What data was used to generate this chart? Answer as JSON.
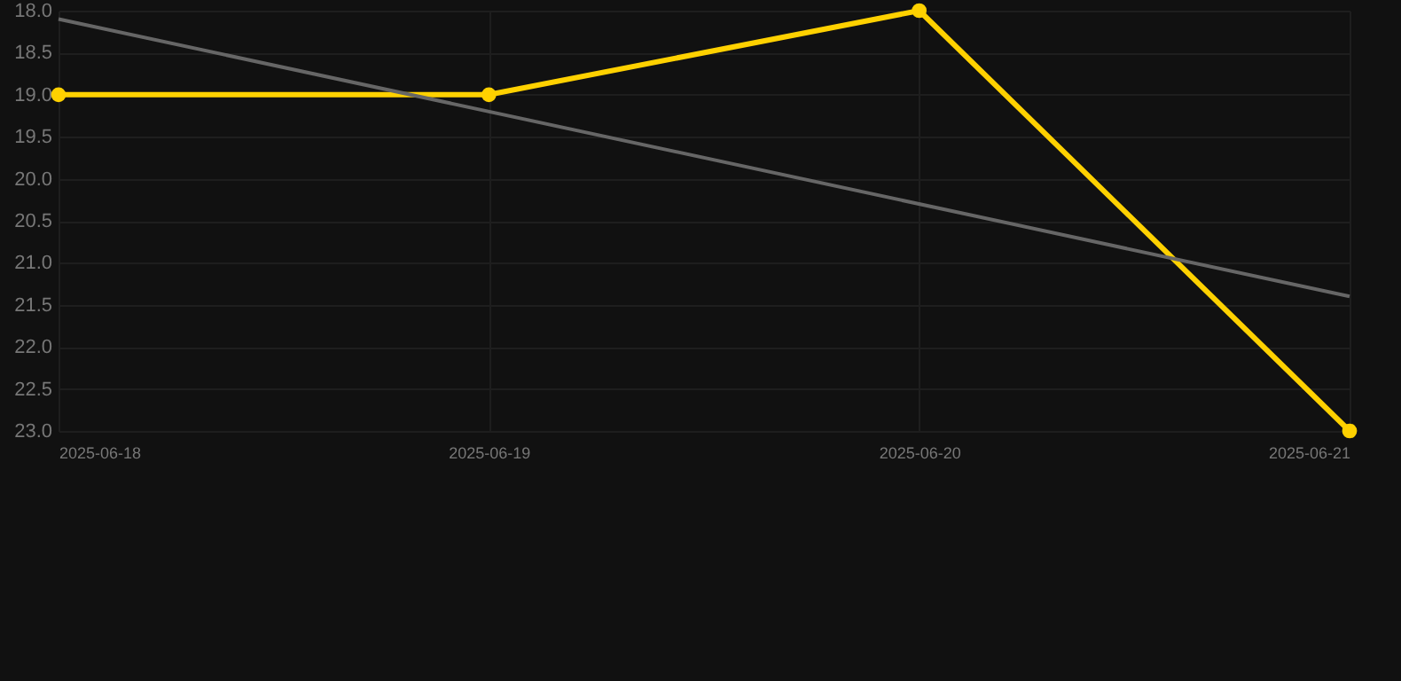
{
  "chart_data": {
    "type": "line",
    "x": [
      "2025-06-18",
      "2025-06-19",
      "2025-06-20",
      "2025-06-21"
    ],
    "series": [
      {
        "color": "#ffd100",
        "values": [
          19,
          19,
          18,
          23
        ],
        "marker": "circle"
      },
      {
        "type": "line",
        "color": "#666666",
        "x": [
          "2025-06-18",
          "2025-06-21"
        ],
        "values": [
          18.1,
          21.4
        ],
        "marker": "none"
      }
    ],
    "xlim": [
      "2025-06-18",
      "2025-06-21"
    ],
    "xticks": [
      "2025-06-18",
      "2025-06-19",
      "2025-06-20",
      "2025-06-21"
    ],
    "ylim": [
      23,
      18
    ],
    "yticks": [
      {
        "value": 18,
        "label": "18.0"
      },
      18.5,
      {
        "value": 19,
        "label": "19.0"
      },
      19.5,
      {
        "value": 20,
        "label": "20.0"
      },
      20.5,
      {
        "value": 21,
        "label": "21.0"
      },
      21.5,
      {
        "value": 22,
        "label": "22.0"
      },
      22.5,
      {
        "value": 23,
        "label": "23.0"
      }
    ],
    "grid": true,
    "legend": false
  }
}
